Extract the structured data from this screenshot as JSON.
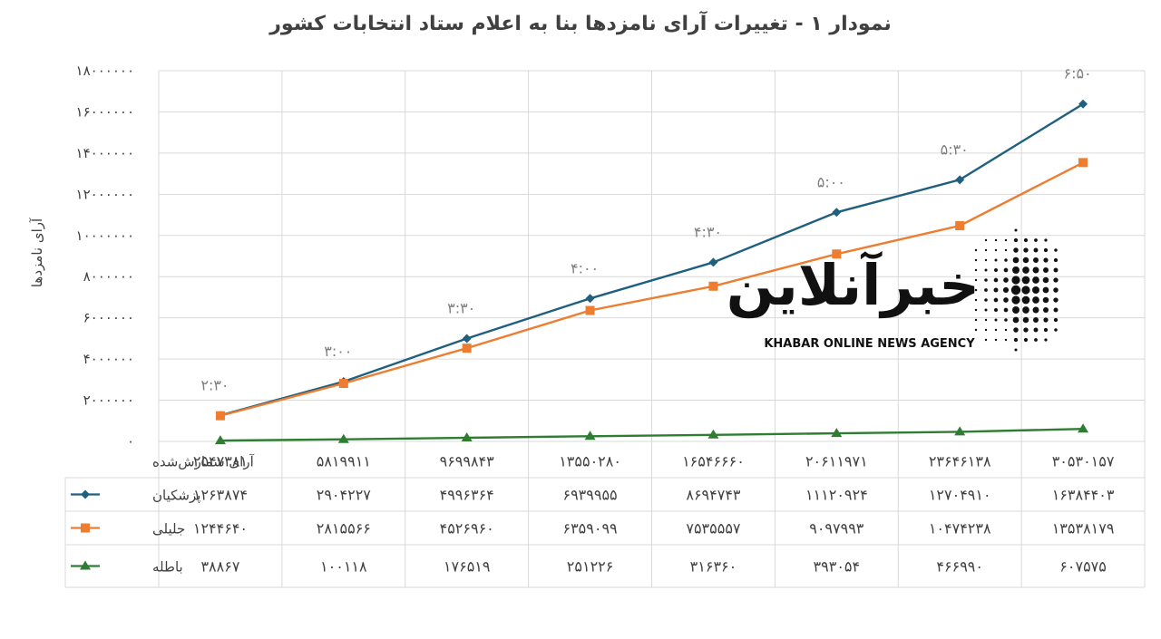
{
  "chart_data": {
    "type": "line",
    "title": "نمودار ۱ - تغییرات آرای نامزدها بنا به اعلام ستاد انتخابات کشور",
    "ylabel": "آرای نامزدها",
    "xlabel": "",
    "ylim": [
      0,
      18000000
    ],
    "y_ticks": [
      "۰",
      "۲۰۰۰۰۰۰",
      "۴۰۰۰۰۰۰",
      "۶۰۰۰۰۰۰",
      "۸۰۰۰۰۰۰",
      "۱۰۰۰۰۰۰۰",
      "۱۲۰۰۰۰۰۰",
      "۱۴۰۰۰۰۰۰",
      "۱۶۰۰۰۰۰۰",
      "۱۸۰۰۰۰۰۰"
    ],
    "grid": true,
    "legend": "table-left",
    "x_header": "آرای شمارش‌شده",
    "categories": [
      "۲۵۴۷۳۸۱",
      "۵۸۱۹۹۱۱",
      "۹۶۹۹۸۴۳",
      "۱۳۵۵۰۲۸۰",
      "۱۶۵۴۶۶۶۰",
      "۲۰۶۱۱۹۷۱",
      "۲۳۶۴۶۱۳۸",
      "۳۰۵۳۰۱۵۷"
    ],
    "time_labels": [
      "۲:۳۰",
      "۳:۰۰",
      "۳:۳۰",
      "۴:۰۰",
      "۴:۳۰",
      "۵:۰۰",
      "۵:۳۰",
      "۶:۵۰"
    ],
    "series": [
      {
        "name": "پزشکیان",
        "color": "#1f5f7f",
        "marker": "diamond",
        "values": [
          1263874,
          2904227,
          4996364,
          6939955,
          8694743,
          11120924,
          12704910,
          16384403
        ],
        "labels": [
          "۱۲۶۳۸۷۴",
          "۲۹۰۴۲۲۷",
          "۴۹۹۶۳۶۴",
          "۶۹۳۹۹۵۵",
          "۸۶۹۴۷۴۳",
          "۱۱۱۲۰۹۲۴",
          "۱۲۷۰۴۹۱۰",
          "۱۶۳۸۴۴۰۳"
        ]
      },
      {
        "name": "جلیلی",
        "color": "#ed7d31",
        "marker": "square",
        "values": [
          1244640,
          2815566,
          4526960,
          6359099,
          7535557,
          9097993,
          10474238,
          13538179
        ],
        "labels": [
          "۱۲۴۴۶۴۰",
          "۲۸۱۵۵۶۶",
          "۴۵۲۶۹۶۰",
          "۶۳۵۹۰۹۹",
          "۷۵۳۵۵۵۷",
          "۹۰۹۷۹۹۳",
          "۱۰۴۷۴۲۳۸",
          "۱۳۵۳۸۱۷۹"
        ]
      },
      {
        "name": "باطله",
        "color": "#2e7d32",
        "marker": "triangle",
        "values": [
          38867,
          100118,
          176519,
          251226,
          316360,
          393054,
          466990,
          607575
        ],
        "labels": [
          "۳۸۸۶۷",
          "۱۰۰۱۱۸",
          "۱۷۶۵۱۹",
          "۲۵۱۲۲۶",
          "۳۱۶۳۶۰",
          "۳۹۳۰۵۴",
          "۴۶۶۹۹۰",
          "۶۰۷۵۷۵"
        ]
      }
    ]
  },
  "watermark": {
    "title": "خبرآنلاین",
    "subtitle": "KHABAR ONLINE NEWS AGENCY"
  }
}
